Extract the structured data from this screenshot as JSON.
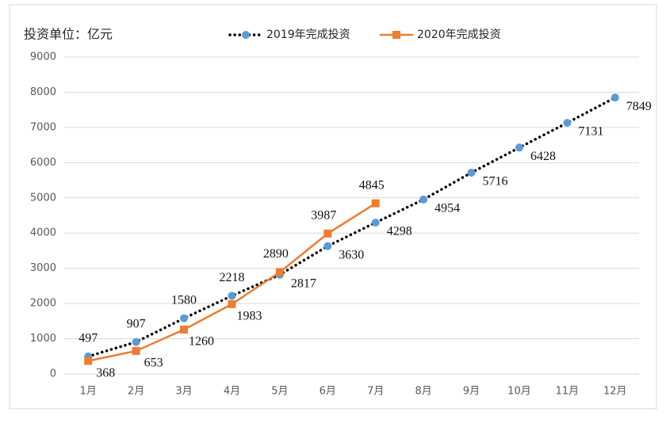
{
  "chart_data": {
    "type": "line",
    "unit_label": "投资单位：亿元",
    "categories": [
      "1月",
      "2月",
      "3月",
      "4月",
      "5月",
      "6月",
      "7月",
      "8月",
      "9月",
      "10月",
      "11月",
      "12月"
    ],
    "series": [
      {
        "name": "2019年完成投资",
        "color": "#5b9bd5",
        "line_color": "#000000",
        "line_style": "dotted",
        "marker": "circle",
        "values": [
          497,
          907,
          1580,
          2218,
          2817,
          3630,
          4298,
          4954,
          5716,
          6428,
          7131,
          7849
        ]
      },
      {
        "name": "2020年完成投资",
        "color": "#ed7d31",
        "line_color": "#ed7d31",
        "line_style": "solid",
        "marker": "square",
        "values": [
          368,
          653,
          1260,
          1983,
          2890,
          3987,
          4845,
          null,
          null,
          null,
          null,
          null
        ]
      }
    ],
    "ylim": [
      0,
      9000
    ],
    "yticks": [
      0,
      1000,
      2000,
      3000,
      4000,
      5000,
      6000,
      7000,
      8000,
      9000
    ],
    "legend": "top"
  }
}
